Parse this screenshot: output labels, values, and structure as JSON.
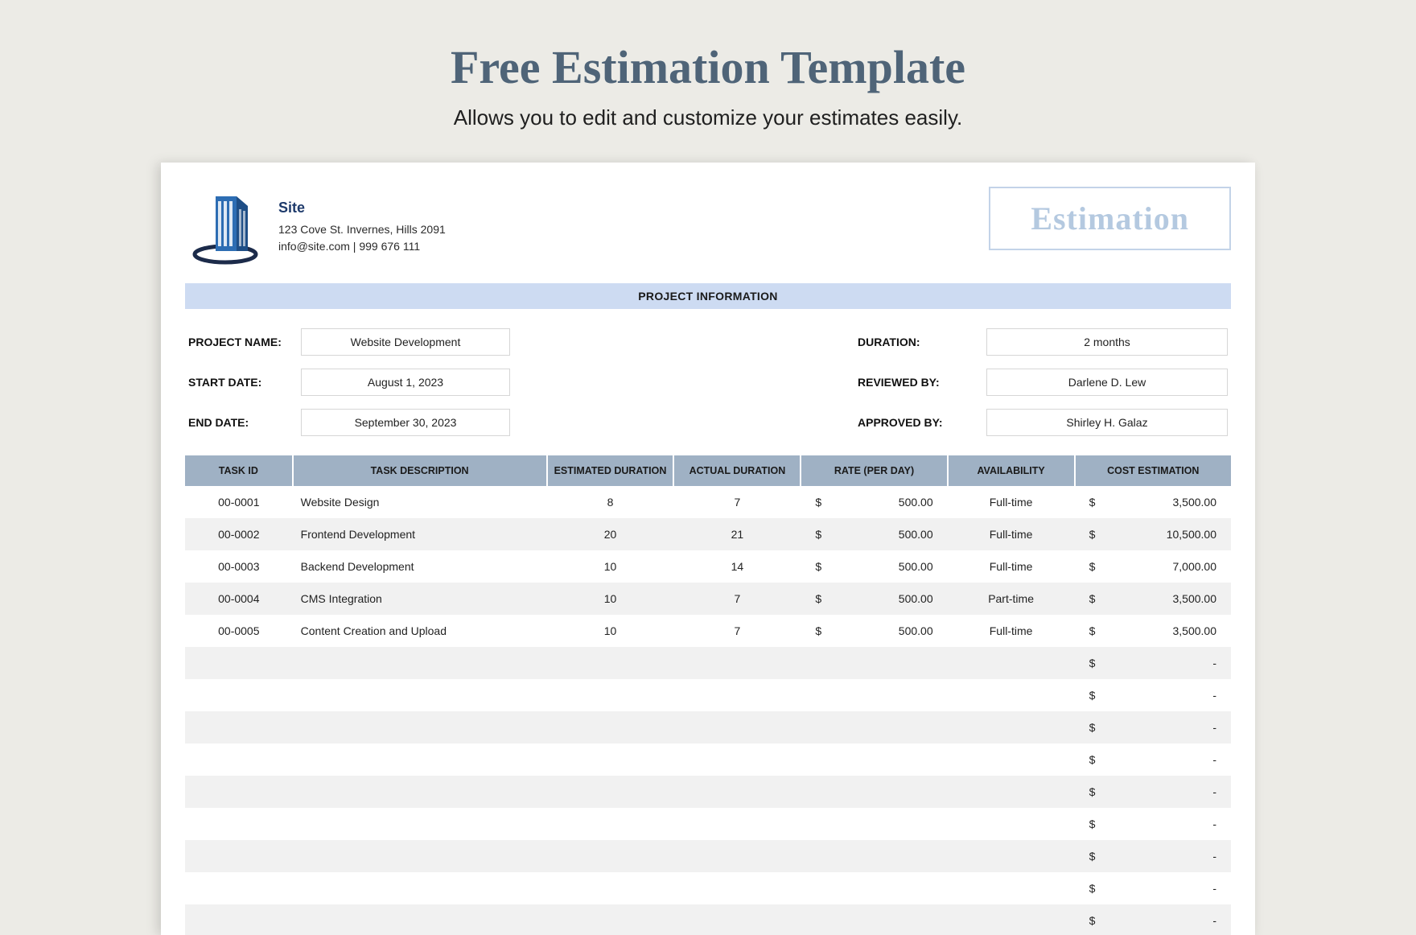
{
  "header": {
    "title": "Free Estimation Template",
    "subtitle": "Allows you to edit and customize your estimates easily."
  },
  "company": {
    "name": "Site",
    "address": "123 Cove St. Invernes, Hills 2091",
    "contact": "info@site.com | 999 676 111"
  },
  "badge": "Estimation",
  "section_label": "PROJECT INFORMATION",
  "project": {
    "labels": {
      "project_name": "PROJECT NAME:",
      "start_date": "START DATE:",
      "end_date": "END DATE:",
      "duration": "DURATION:",
      "reviewed_by": "REVIEWED BY:",
      "approved_by": "APPROVED BY:"
    },
    "project_name": "Website Development",
    "start_date": "August 1, 2023",
    "end_date": "September 30, 2023",
    "duration": "2 months",
    "reviewed_by": "Darlene D. Lew",
    "approved_by": "Shirley H. Galaz"
  },
  "table": {
    "columns": [
      "TASK ID",
      "TASK DESCRIPTION",
      "ESTIMATED DURATION",
      "ACTUAL DURATION",
      "RATE (PER DAY)",
      "AVAILABILITY",
      "COST ESTIMATION"
    ],
    "currency": "$",
    "empty_value": "-",
    "rows": [
      {
        "id": "00-0001",
        "desc": "Website Design",
        "est": "8",
        "act": "7",
        "rate": "500.00",
        "avail": "Full-time",
        "cost": "3,500.00"
      },
      {
        "id": "00-0002",
        "desc": "Frontend Development",
        "est": "20",
        "act": "21",
        "rate": "500.00",
        "avail": "Full-time",
        "cost": "10,500.00"
      },
      {
        "id": "00-0003",
        "desc": "Backend Development",
        "est": "10",
        "act": "14",
        "rate": "500.00",
        "avail": "Full-time",
        "cost": "7,000.00"
      },
      {
        "id": "00-0004",
        "desc": "CMS Integration",
        "est": "10",
        "act": "7",
        "rate": "500.00",
        "avail": "Part-time",
        "cost": "3,500.00"
      },
      {
        "id": "00-0005",
        "desc": "Content Creation and Upload",
        "est": "10",
        "act": "7",
        "rate": "500.00",
        "avail": "Full-time",
        "cost": "3,500.00"
      }
    ],
    "empty_row_count": 9
  },
  "colors": {
    "page_bg": "#ecebe6",
    "title": "#4f6478",
    "section_bar": "#cddbf2",
    "table_header": "#9fb1c4",
    "row_alt": "#f1f1f1",
    "badge_border": "#c3d3e8",
    "badge_text": "#b4c9e0"
  }
}
